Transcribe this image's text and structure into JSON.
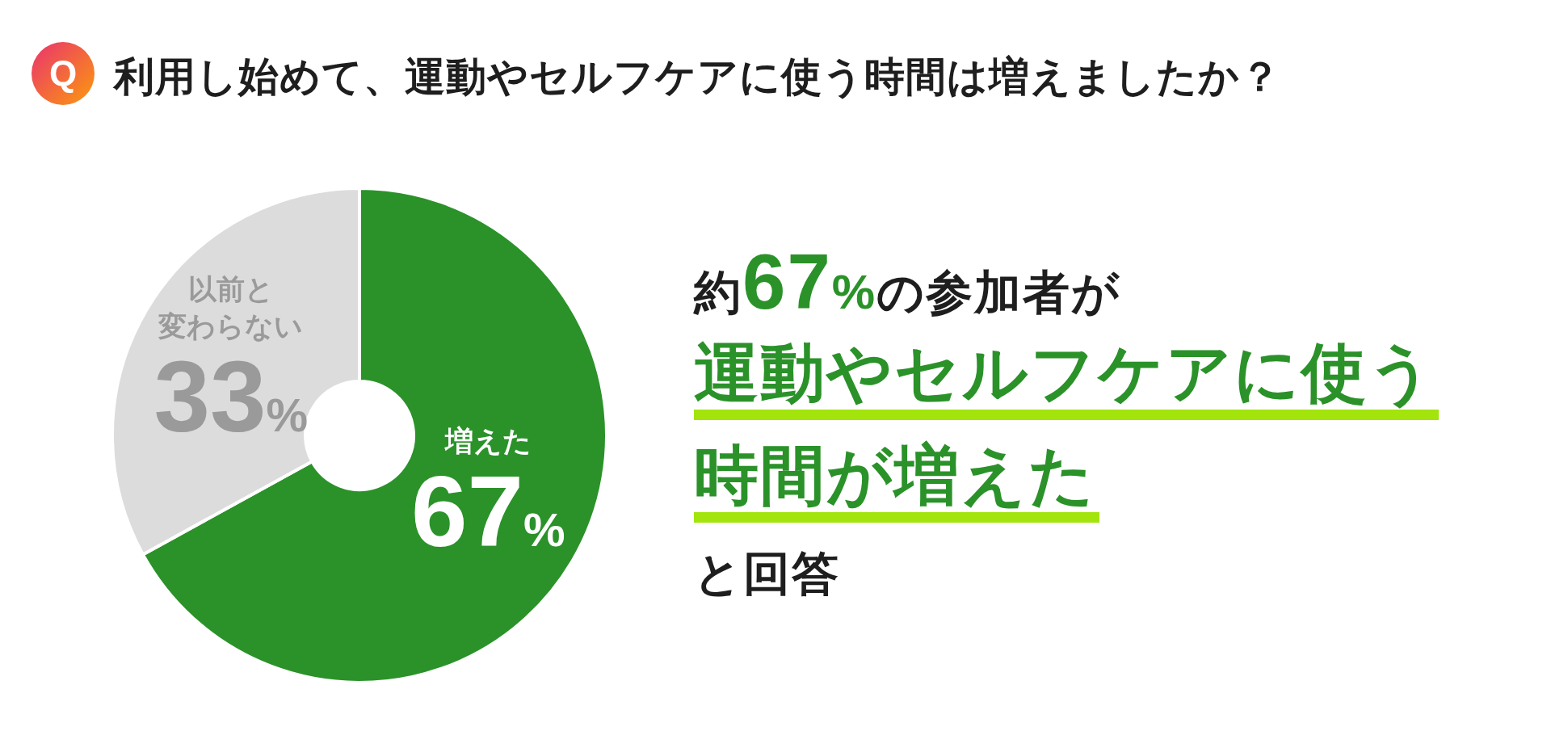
{
  "chart_data": {
    "type": "donut",
    "title": "利用し始めて、運動やセルフケアに使う時間は増えましたか？",
    "categories": [
      "増えた",
      "以前と変わらない"
    ],
    "values": [
      67,
      33
    ],
    "colors": [
      "#2a9229",
      "#dcdcdc"
    ],
    "value_labels": [
      "67%",
      "33%"
    ],
    "annotations": [
      "Q",
      "約**67%**の参加者が",
      "運動やセルフケアに使う",
      "時間が増えた",
      "と回答"
    ]
  }
}
